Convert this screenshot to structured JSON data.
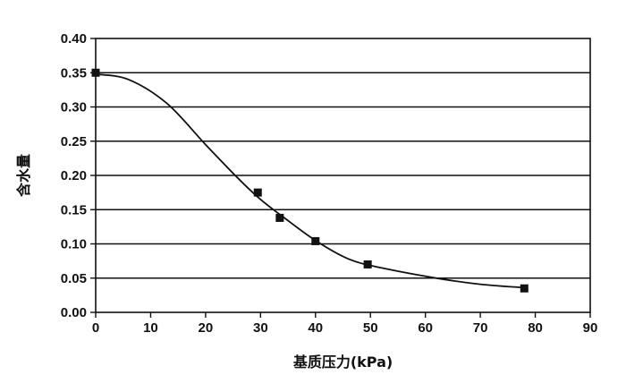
{
  "chart_data": {
    "type": "scatter",
    "title": "",
    "xlabel": "基质压力(kPa)",
    "ylabel": "含水量",
    "xlim": [
      0,
      90
    ],
    "ylim": [
      0,
      0.4
    ],
    "x_ticks": [
      "0",
      "10",
      "20",
      "30",
      "40",
      "50",
      "60",
      "70",
      "80",
      "90"
    ],
    "y_ticks": [
      "0.00",
      "0.05",
      "0.10",
      "0.15",
      "0.20",
      "0.25",
      "0.30",
      "0.35",
      "0.40"
    ],
    "grid": "horizontal",
    "legend": "none",
    "series": [
      {
        "kind": "markers",
        "marker": "square",
        "color": "#111111",
        "points": [
          {
            "x": 0,
            "y": 0.35
          },
          {
            "x": 29.5,
            "y": 0.175
          },
          {
            "x": 33.5,
            "y": 0.138
          },
          {
            "x": 40,
            "y": 0.104
          },
          {
            "x": 49.5,
            "y": 0.07
          },
          {
            "x": 78,
            "y": 0.035
          }
        ]
      },
      {
        "kind": "curve",
        "color": "#111111",
        "points": [
          {
            "x": 0,
            "y": 0.348
          },
          {
            "x": 6,
            "y": 0.34
          },
          {
            "x": 13,
            "y": 0.305
          },
          {
            "x": 20,
            "y": 0.245
          },
          {
            "x": 26,
            "y": 0.195
          },
          {
            "x": 30,
            "y": 0.165
          },
          {
            "x": 34,
            "y": 0.14
          },
          {
            "x": 40,
            "y": 0.105
          },
          {
            "x": 46,
            "y": 0.078
          },
          {
            "x": 52,
            "y": 0.065
          },
          {
            "x": 62,
            "y": 0.05
          },
          {
            "x": 70,
            "y": 0.041
          },
          {
            "x": 78,
            "y": 0.036
          }
        ]
      }
    ]
  }
}
